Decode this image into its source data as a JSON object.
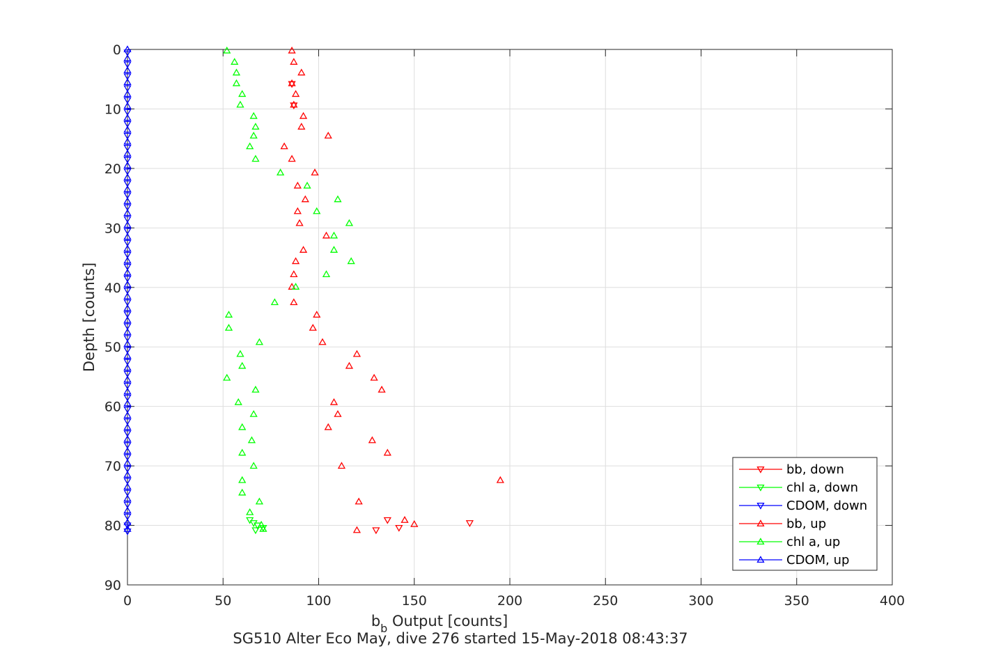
{
  "chart_data": {
    "type": "scatter",
    "title": "",
    "caption": "SG510 Alter Eco May, dive 276 started 15-May-2018 08:43:37",
    "xlabel_main": "b",
    "xlabel_sub": "b",
    "xlabel_rest": " Output [counts]",
    "ylabel": "Depth [counts]",
    "xlim": [
      0,
      400
    ],
    "ylim": [
      0,
      90
    ],
    "y_reversed": true,
    "grid": true,
    "legend_position": "bottom-right",
    "x_ticks": [
      "0",
      "50",
      "100",
      "150",
      "200",
      "250",
      "300",
      "350",
      "400"
    ],
    "y_ticks": [
      "0",
      "10",
      "20",
      "30",
      "40",
      "50",
      "60",
      "70",
      "80",
      "90"
    ],
    "x_tick_values": [
      0,
      50,
      100,
      150,
      200,
      250,
      300,
      350,
      400
    ],
    "y_tick_values": [
      0,
      10,
      20,
      30,
      40,
      50,
      60,
      70,
      80,
      90
    ],
    "series": [
      {
        "name": "bb, down",
        "color": "#ff0000",
        "marker": "triangle-down",
        "x": [
          179,
          136,
          130,
          142,
          86,
          87
        ],
        "y": [
          79.6,
          79.1,
          80.8,
          80.4,
          5.8,
          9.4
        ]
      },
      {
        "name": "chl a, down",
        "color": "#00ff00",
        "marker": "triangle-down",
        "x": [
          64,
          66,
          67,
          71,
          68
        ],
        "y": [
          79.1,
          79.6,
          80.8,
          80.4,
          80.0
        ]
      },
      {
        "name": "CDOM, down",
        "color": "#0000ff",
        "marker": "triangle-down",
        "x": [
          0,
          0,
          0,
          0,
          0,
          0,
          0,
          0,
          0,
          0,
          0,
          0,
          0,
          0,
          0,
          0,
          0,
          0,
          0,
          0,
          0,
          0,
          0,
          0,
          0,
          0,
          0,
          0,
          0,
          0,
          0,
          0,
          0,
          0,
          0,
          0,
          0,
          0,
          0,
          0,
          0,
          0
        ],
        "y": [
          0.5,
          2.5,
          4.5,
          6.5,
          8.5,
          10.5,
          12.5,
          14.5,
          16.5,
          18.5,
          20.5,
          22.5,
          24.5,
          26.5,
          28.5,
          30.5,
          32.5,
          34.5,
          36.5,
          38.5,
          40.5,
          42.5,
          44.5,
          46.5,
          48.5,
          50.5,
          52.5,
          54.5,
          56.5,
          58.5,
          60.5,
          62.5,
          64.5,
          66.5,
          68.5,
          70.5,
          72.5,
          74.5,
          76.5,
          78.5,
          80.0,
          81.0
        ]
      },
      {
        "name": "bb, up",
        "color": "#ff0000",
        "marker": "triangle-up",
        "x": [
          86,
          87,
          91,
          86,
          88,
          87,
          92,
          91,
          105,
          82,
          86,
          98,
          89,
          93,
          89,
          90,
          104,
          92,
          88,
          87,
          86,
          87,
          99,
          97,
          102,
          120,
          116,
          129,
          133,
          108,
          110,
          105,
          128,
          136,
          112,
          195,
          121,
          145,
          150,
          120
        ],
        "y": [
          0.2,
          2.1,
          3.9,
          5.7,
          7.5,
          9.3,
          11.2,
          13.0,
          14.5,
          16.3,
          18.4,
          20.7,
          22.9,
          25.2,
          27.2,
          29.2,
          31.3,
          33.7,
          35.6,
          37.8,
          39.9,
          42.5,
          44.6,
          46.8,
          49.2,
          51.2,
          53.2,
          55.2,
          57.2,
          59.3,
          61.3,
          63.5,
          65.7,
          67.8,
          70.0,
          72.4,
          76.0,
          79.1,
          79.8,
          80.8
        ]
      },
      {
        "name": "chl a, up",
        "color": "#00ff00",
        "marker": "triangle-up",
        "x": [
          52,
          56,
          57,
          57,
          60,
          59,
          66,
          67,
          66,
          64,
          67,
          80,
          94,
          110,
          99,
          116,
          108,
          108,
          117,
          104,
          88,
          77,
          53,
          53,
          69,
          59,
          60,
          52,
          67,
          58,
          66,
          60,
          65,
          60,
          66,
          60,
          60,
          69,
          64,
          70,
          71
        ],
        "y": [
          0.2,
          2.1,
          3.9,
          5.7,
          7.5,
          9.3,
          11.2,
          13.0,
          14.5,
          16.3,
          18.4,
          20.7,
          22.9,
          25.2,
          27.2,
          29.2,
          31.3,
          33.7,
          35.6,
          37.8,
          39.9,
          42.5,
          44.6,
          46.8,
          49.2,
          51.2,
          53.2,
          55.2,
          57.2,
          59.3,
          61.3,
          63.5,
          65.7,
          67.8,
          70.0,
          72.4,
          74.5,
          76.0,
          77.8,
          79.9,
          80.6
        ]
      },
      {
        "name": "CDOM, up",
        "color": "#0000ff",
        "marker": "triangle-up",
        "x": [
          0,
          0,
          0,
          0,
          0,
          0,
          0,
          0,
          0,
          0,
          0,
          0,
          0,
          0,
          0,
          0,
          0,
          0,
          0,
          0,
          0,
          0,
          0,
          0,
          0,
          0,
          0,
          0,
          0,
          0,
          0,
          0,
          0,
          0,
          0,
          0,
          0,
          0,
          0,
          0,
          0,
          0
        ],
        "y": [
          0.0,
          1.5,
          3.5,
          5.5,
          7.5,
          9.5,
          11.5,
          13.5,
          15.5,
          17.5,
          19.5,
          21.5,
          23.5,
          25.5,
          27.5,
          29.5,
          31.5,
          33.5,
          35.5,
          37.5,
          39.5,
          41.5,
          43.5,
          45.5,
          47.5,
          49.5,
          51.5,
          53.5,
          55.5,
          57.5,
          59.5,
          61.5,
          63.5,
          65.5,
          67.5,
          69.5,
          71.5,
          73.5,
          75.5,
          77.5,
          79.5,
          80.6
        ]
      }
    ]
  }
}
